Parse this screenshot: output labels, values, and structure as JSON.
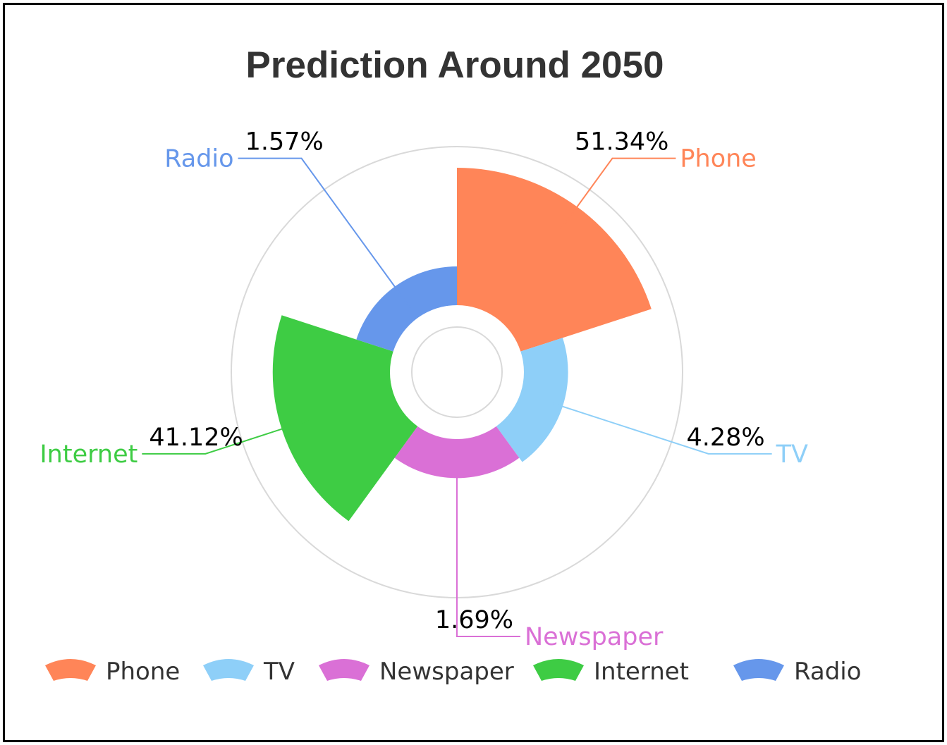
{
  "chart_data": {
    "type": "pie",
    "subtype": "nightingale-rose",
    "title": "Prediction Around 2050",
    "slices": [
      {
        "name": "Phone",
        "value": 51.34,
        "label": "51.34%",
        "color": "#FF8558"
      },
      {
        "name": "TV",
        "value": 4.28,
        "label": "4.28%",
        "color": "#8ECFF8"
      },
      {
        "name": "Newspaper",
        "value": 1.69,
        "label": "1.69%",
        "color": "#DA70D6"
      },
      {
        "name": "Internet",
        "value": 41.12,
        "label": "41.12%",
        "color": "#3ECC44"
      },
      {
        "name": "Radio",
        "value": 1.57,
        "label": "1.57%",
        "color": "#6697EB"
      }
    ],
    "legend": {
      "position": "bottom",
      "items": [
        "Phone",
        "TV",
        "Newspaper",
        "Internet",
        "Radio"
      ]
    }
  }
}
